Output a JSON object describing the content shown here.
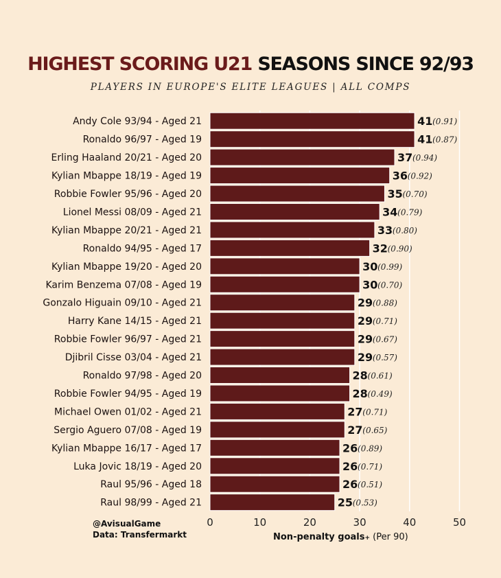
{
  "title": {
    "part1": "HIGHEST SCORING U21",
    "part2": "SEASONS SINCE 92/93"
  },
  "subtitle": "PLAYERS IN EUROPE'S ELITE LEAGUES  |  ALL COMPS",
  "credits": {
    "handle": "@AvisualGame",
    "source": "Data: Transfermarkt"
  },
  "colors": {
    "bar": "#5e1a1a",
    "background": "#fbebd6",
    "grid": "#ffffff"
  },
  "chart_data": {
    "type": "bar",
    "orientation": "horizontal",
    "xlim": [
      0,
      50
    ],
    "xticks": [
      "0",
      "10",
      "20",
      "30",
      "40",
      "50"
    ],
    "xlabel": {
      "main": "Non-penalty goals",
      "suffix": "+",
      "secondary": " (Per 90)"
    },
    "grid": true,
    "categories": [
      "Andy Cole 93/94 - Aged 21",
      "Ronaldo 96/97 - Aged 19",
      "Erling Haaland 20/21 - Aged 20",
      "Kylian Mbappe 18/19 - Aged 19",
      "Robbie Fowler 95/96 - Aged 20",
      "Lionel Messi 08/09 - Aged 21",
      "Kylian Mbappe 20/21 - Aged 21",
      "Ronaldo 94/95 - Aged 17",
      "Kylian Mbappe 19/20 - Aged 20",
      "Karim Benzema 07/08 - Aged 19",
      "Gonzalo Higuain 09/10 - Aged 21",
      "Harry Kane 14/15 - Aged 21",
      "Robbie Fowler 96/97 - Aged 21",
      "Djibril Cisse 03/04 - Aged 21",
      "Ronaldo 97/98 - Aged 20",
      "Robbie Fowler 94/95 - Aged 19",
      "Michael Owen 01/02 - Aged 21",
      "Sergio Aguero 07/08 - Aged 19",
      "Kylian Mbappe 16/17 - Aged 17",
      "Luka Jovic 18/19 - Aged 20",
      "Raul 95/96 - Aged 18",
      "Raul 98/99 - Aged 21"
    ],
    "values": [
      41,
      41,
      37,
      36,
      35,
      34,
      33,
      32,
      30,
      30,
      29,
      29,
      29,
      29,
      28,
      28,
      27,
      27,
      26,
      26,
      26,
      25
    ],
    "per90": [
      "(0.91)",
      "(0.87)",
      "(0.94)",
      "(0.92)",
      "(0.70)",
      "(0.79)",
      "(0.80)",
      "(0.90)",
      "(0.99)",
      "(0.70)",
      "(0.88)",
      "(0.71)",
      "(0.67)",
      "(0.57)",
      "(0.61)",
      "(0.49)",
      "(0.71)",
      "(0.65)",
      "(0.89)",
      "(0.71)",
      "(0.51)",
      "(0.53)"
    ]
  }
}
